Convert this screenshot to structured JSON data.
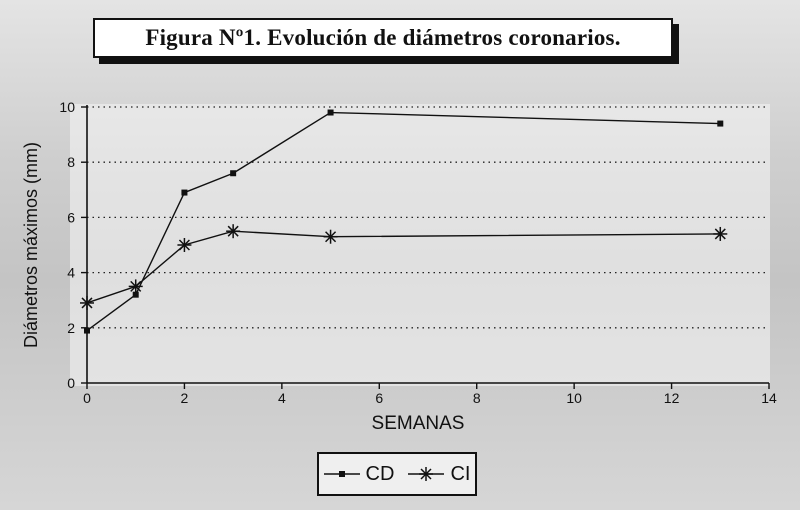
{
  "title": "Figura Nº1. Evolución de diámetros coronarios.",
  "legend": {
    "cd_label": "CD",
    "ci_label": "CI"
  },
  "chart_data": {
    "type": "line",
    "title": "Figura Nº1. Evolución de diámetros coronarios.",
    "xlabel": "SEMANAS",
    "ylabel": "Diámetros máximos (mm)",
    "xlim": [
      0,
      14
    ],
    "ylim": [
      0,
      10
    ],
    "xticks": [
      0,
      2,
      4,
      6,
      8,
      10,
      12,
      14
    ],
    "yticks": [
      0,
      2,
      4,
      6,
      8,
      10
    ],
    "grid": "horizontal-dotted",
    "legend_position": "bottom-center",
    "series": [
      {
        "name": "CD",
        "marker": "square",
        "x": [
          0,
          1,
          2,
          3,
          5,
          13
        ],
        "y": [
          1.9,
          3.2,
          6.9,
          7.6,
          9.8,
          9.4
        ]
      },
      {
        "name": "CI",
        "marker": "asterisk",
        "x": [
          0,
          1,
          2,
          3,
          5,
          13
        ],
        "y": [
          2.9,
          3.5,
          5.0,
          5.5,
          5.3,
          5.4
        ]
      }
    ]
  }
}
